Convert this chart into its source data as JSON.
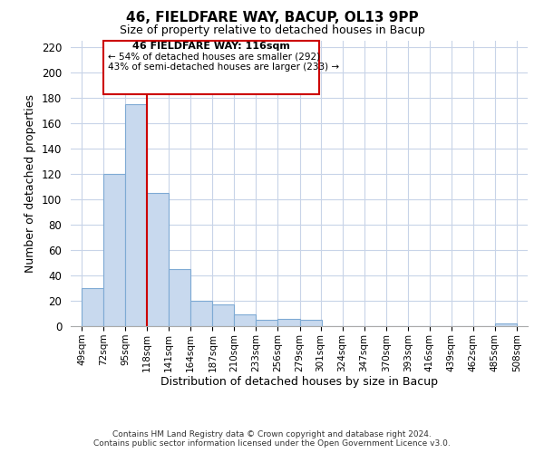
{
  "title": "46, FIELDFARE WAY, BACUP, OL13 9PP",
  "subtitle": "Size of property relative to detached houses in Bacup",
  "xlabel": "Distribution of detached houses by size in Bacup",
  "ylabel": "Number of detached properties",
  "bin_edges": [
    49,
    72,
    95,
    118,
    141,
    164,
    187,
    210,
    233,
    256,
    279,
    301,
    324,
    347,
    370,
    393,
    416,
    439,
    462,
    485,
    508
  ],
  "bar_heights": [
    30,
    120,
    175,
    105,
    45,
    20,
    17,
    9,
    5,
    6,
    5,
    0,
    0,
    0,
    0,
    0,
    0,
    0,
    0,
    2
  ],
  "bar_color": "#c8d9ee",
  "bar_edgecolor": "#7eaad4",
  "vline_x": 118,
  "vline_color": "#cc0000",
  "ylim": [
    0,
    225
  ],
  "yticks": [
    0,
    20,
    40,
    60,
    80,
    100,
    120,
    140,
    160,
    180,
    200,
    220
  ],
  "annotation_title": "46 FIELDFARE WAY: 116sqm",
  "annotation_line1": "← 54% of detached houses are smaller (292)",
  "annotation_line2": "43% of semi-detached houses are larger (233) →",
  "footer_line1": "Contains HM Land Registry data © Crown copyright and database right 2024.",
  "footer_line2": "Contains public sector information licensed under the Open Government Licence v3.0.",
  "background_color": "#ffffff",
  "grid_color": "#c8d4e8"
}
